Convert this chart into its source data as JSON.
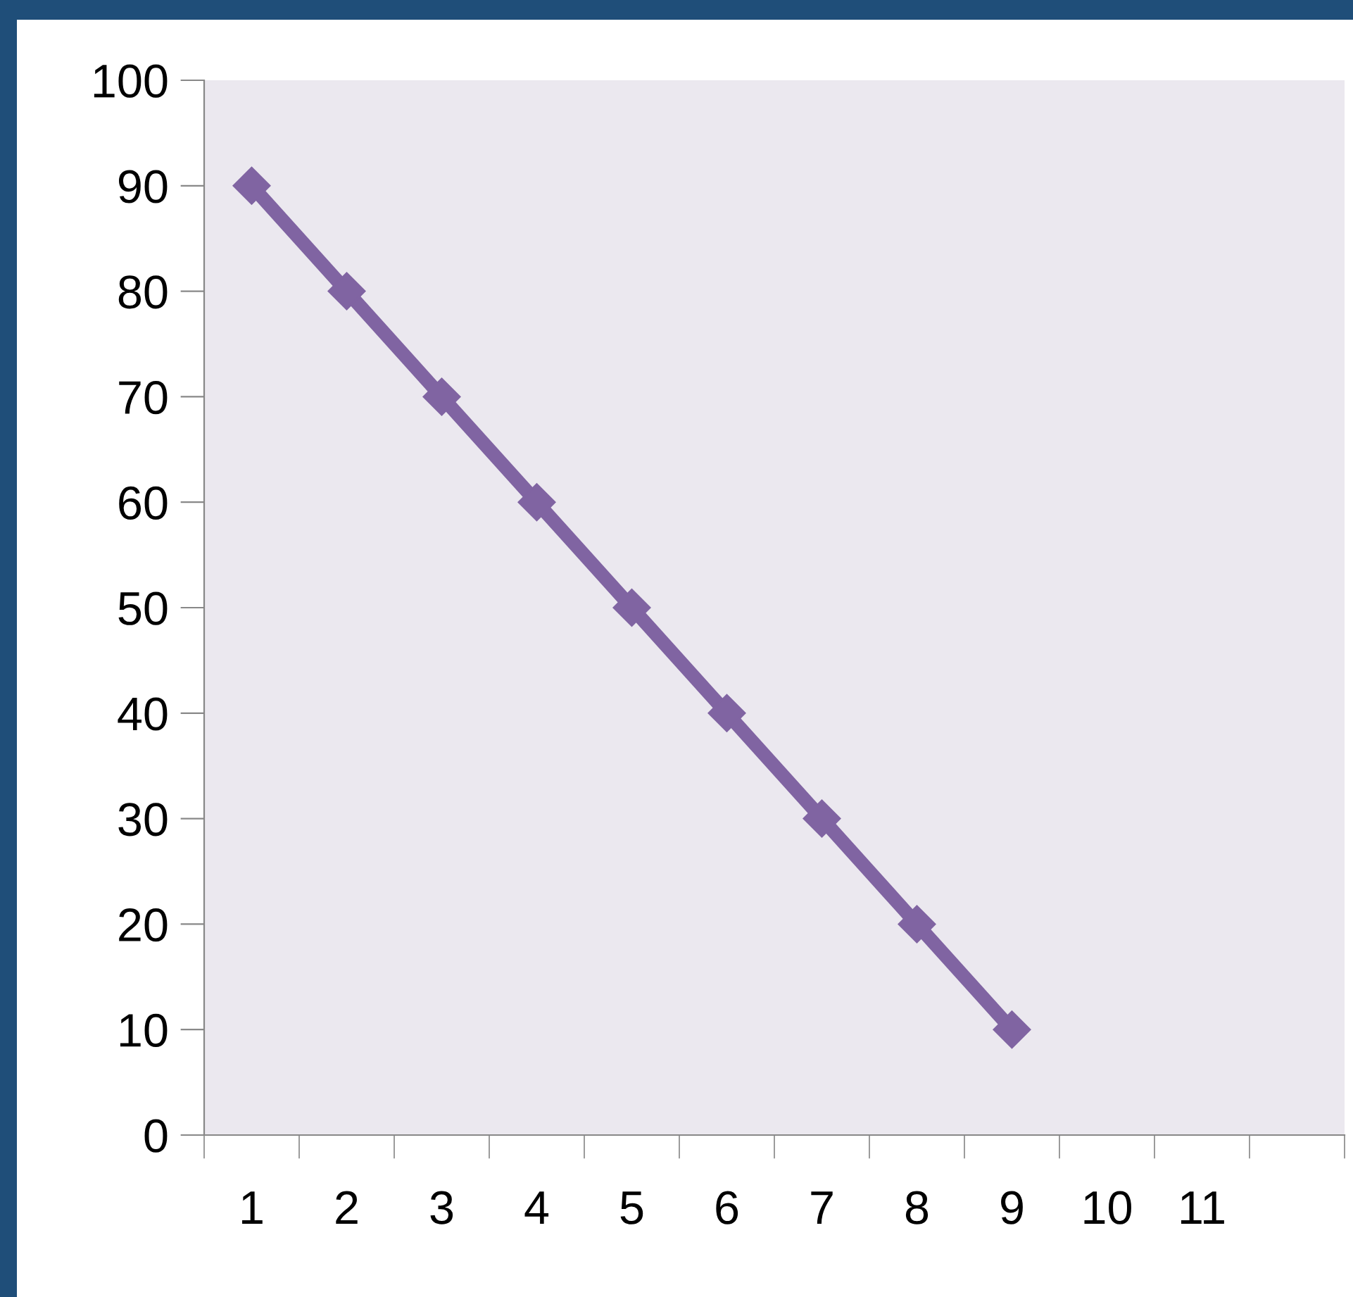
{
  "chart_data": {
    "type": "line",
    "categories": [
      "1",
      "2",
      "3",
      "4",
      "5",
      "6",
      "7",
      "8",
      "9",
      "10",
      "11",
      null
    ],
    "series": [
      {
        "color": "#8064a2",
        "values": [
          90,
          80,
          70,
          60,
          50,
          40,
          30,
          20,
          10,
          null,
          null,
          null
        ]
      }
    ],
    "ylim": [
      0,
      100
    ],
    "yticks": [
      0,
      10,
      20,
      30,
      40,
      50,
      60,
      70,
      80,
      90,
      100
    ],
    "marker": "diamond",
    "line_style": "solid"
  }
}
